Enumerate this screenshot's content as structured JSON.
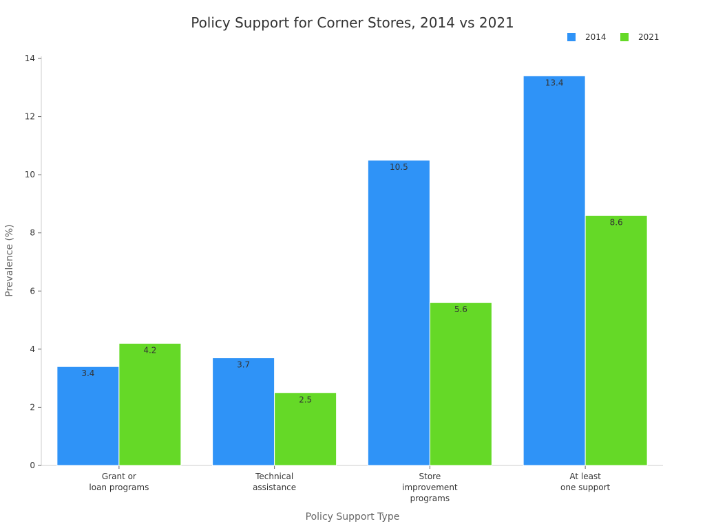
{
  "chart_data": {
    "type": "bar",
    "title": "Policy Support for Corner Stores, 2014 vs 2021",
    "xlabel": "Policy Support Type",
    "ylabel": "Prevalence (%)",
    "ylim": [
      0,
      14
    ],
    "yticks": [
      0,
      2,
      4,
      6,
      8,
      10,
      12,
      14
    ],
    "grid": false,
    "legend_position": "top-right",
    "categories": [
      [
        "Grant or",
        "loan programs"
      ],
      [
        "Technical",
        "assistance"
      ],
      [
        "Store",
        "improvement",
        "programs"
      ],
      [
        "At least",
        "one support"
      ]
    ],
    "series": [
      {
        "name": "2014",
        "color": "#2f93f7",
        "values": [
          3.4,
          3.7,
          10.5,
          13.4
        ]
      },
      {
        "name": "2021",
        "color": "#65d927",
        "values": [
          4.2,
          2.5,
          5.6,
          8.6
        ]
      }
    ]
  }
}
